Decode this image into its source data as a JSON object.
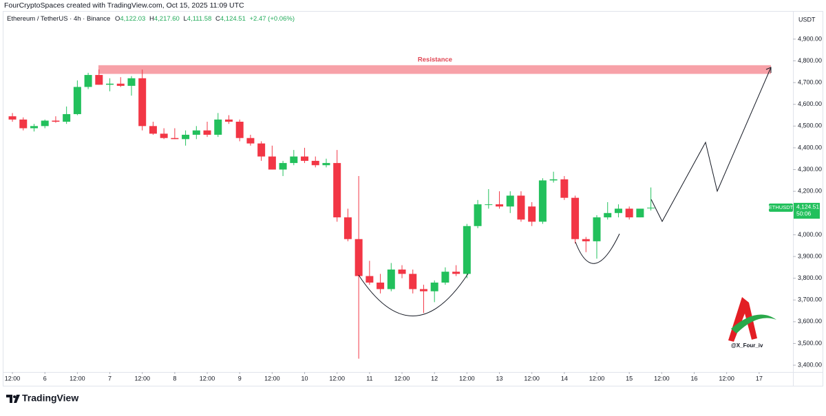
{
  "header": {
    "credit": "FourCryptoSpaces created with TradingView.com, Oct 15, 2025 11:09 UTC",
    "symbol": "Ethereum / TetherUS · 4h · Binance",
    "o_label": "O",
    "o_value": "4,122.03",
    "h_label": "H",
    "h_value": "4,217.60",
    "l_label": "L",
    "l_value": "4,111.58",
    "c_label": "C",
    "c_value": "4,124.51",
    "change": "+2.47 (+0.06%)"
  },
  "chart_data": {
    "type": "candlestick",
    "up_color": "#22c05c",
    "down_color": "#f23645",
    "open": [
      4545,
      4530,
      4490,
      4500,
      4525,
      4520,
      4555,
      4680,
      4735,
      4690,
      4695,
      4685,
      4720,
      4500,
      4465,
      4445,
      4440,
      4460,
      4480,
      4460,
      4530,
      4520,
      4445,
      4420,
      4360,
      4300,
      4330,
      4360,
      4340,
      4320,
      4330,
      4080,
      3980,
      3810,
      3780,
      3750,
      3840,
      3820,
      3750,
      3740,
      3780,
      3830,
      3820,
      4040,
      4140,
      4140,
      4130,
      4180,
      4130,
      4060,
      4250,
      4255,
      4170,
      3980,
      3970,
      4080,
      4100,
      4120,
      4080,
      4122.03
    ],
    "high": [
      4560,
      4540,
      4510,
      4530,
      4545,
      4590,
      4710,
      4745,
      4760,
      4720,
      4725,
      4730,
      4760,
      4520,
      4490,
      4490,
      4480,
      4500,
      4520,
      4560,
      4550,
      4530,
      4460,
      4430,
      4410,
      4340,
      4390,
      4400,
      4360,
      4350,
      4390,
      4120,
      4270,
      3880,
      3820,
      3870,
      3860,
      3840,
      3770,
      3790,
      3850,
      3860,
      4050,
      4160,
      4210,
      4200,
      4200,
      4200,
      4150,
      4260,
      4290,
      4270,
      4180,
      3990,
      4090,
      4150,
      4140,
      4130,
      4120,
      4217.6
    ],
    "low": [
      4520,
      4480,
      4475,
      4490,
      4515,
      4510,
      4550,
      4670,
      4690,
      4660,
      4680,
      4640,
      4480,
      4460,
      4440,
      4440,
      4410,
      4440,
      4450,
      4450,
      4510,
      4430,
      4410,
      4340,
      4300,
      4270,
      4320,
      4330,
      4310,
      4310,
      4060,
      3970,
      3430,
      3770,
      3730,
      3740,
      3800,
      3730,
      3640,
      3690,
      3770,
      3810,
      3800,
      4030,
      4120,
      4120,
      4100,
      4060,
      4040,
      4050,
      4240,
      4160,
      3960,
      3920,
      3890,
      4070,
      4080,
      4070,
      4080,
      4111.58
    ],
    "close": [
      4530,
      4490,
      4500,
      4525,
      4520,
      4555,
      4680,
      4735,
      4690,
      4695,
      4685,
      4720,
      4500,
      4465,
      4445,
      4440,
      4460,
      4480,
      4460,
      4530,
      4520,
      4445,
      4420,
      4360,
      4300,
      4330,
      4360,
      4340,
      4320,
      4330,
      4080,
      3980,
      3810,
      3780,
      3750,
      3840,
      3820,
      3750,
      3740,
      3780,
      3830,
      3820,
      4040,
      4140,
      4140,
      4130,
      4180,
      4070,
      4060,
      4250,
      4255,
      4170,
      3980,
      3970,
      4080,
      4100,
      4120,
      4080,
      4120,
      4124.51
    ],
    "ylim": [
      3356,
      5023
    ],
    "yticks": [
      {
        "value": 3400,
        "label": "3,400.00"
      },
      {
        "value": 3500,
        "label": "3,500.00"
      },
      {
        "value": 3600,
        "label": "3,600.00"
      },
      {
        "value": 3700,
        "label": "3,700.00"
      },
      {
        "value": 3800,
        "label": "3,800.00"
      },
      {
        "value": 3900,
        "label": "3,900.00"
      },
      {
        "value": 4000,
        "label": "4,000.00"
      },
      {
        "value": 4200,
        "label": "4,200.00"
      },
      {
        "value": 4300,
        "label": "4,300.00"
      },
      {
        "value": 4400,
        "label": "4,400.00"
      },
      {
        "value": 4500,
        "label": "4,500.00"
      },
      {
        "value": 4600,
        "label": "4,600.00"
      },
      {
        "value": 4700,
        "label": "4,700.00"
      },
      {
        "value": 4800,
        "label": "4,800.00"
      },
      {
        "value": 4900,
        "label": "4,900.00"
      }
    ],
    "y_axis_label": "USDT",
    "xlim": [
      -0.83,
      72
    ],
    "xticks": [
      {
        "value": 0,
        "label": "12:00"
      },
      {
        "value": 3,
        "label": "6"
      },
      {
        "value": 6,
        "label": "12:00"
      },
      {
        "value": 9,
        "label": "7"
      },
      {
        "value": 12,
        "label": "12:00"
      },
      {
        "value": 15,
        "label": "8"
      },
      {
        "value": 18,
        "label": "12:00"
      },
      {
        "value": 21,
        "label": "9"
      },
      {
        "value": 24,
        "label": "12:00"
      },
      {
        "value": 27,
        "label": "10"
      },
      {
        "value": 30,
        "label": "12:00"
      },
      {
        "value": 33,
        "label": "11"
      },
      {
        "value": 36,
        "label": "12:00"
      },
      {
        "value": 39,
        "label": "12"
      },
      {
        "value": 42,
        "label": "12:00"
      },
      {
        "value": 45,
        "label": "13"
      },
      {
        "value": 48,
        "label": "12:00"
      },
      {
        "value": 51,
        "label": "14"
      },
      {
        "value": 54,
        "label": "12:00"
      },
      {
        "value": 57,
        "label": "15"
      },
      {
        "value": 60,
        "label": "12:00"
      },
      {
        "value": 63,
        "label": "16"
      },
      {
        "value": 66,
        "label": "12:00"
      },
      {
        "value": 69,
        "label": "17"
      }
    ],
    "resistance": {
      "label": "Resistance",
      "low": 4740,
      "high": 4780,
      "color": "#f7a1a8"
    },
    "price_label": {
      "symbol": "ETHUSDT",
      "price": "4,124.51",
      "countdown": "50:06"
    },
    "watermark": "@X_Four_iv"
  },
  "footer": {
    "brand": "TradingView"
  }
}
